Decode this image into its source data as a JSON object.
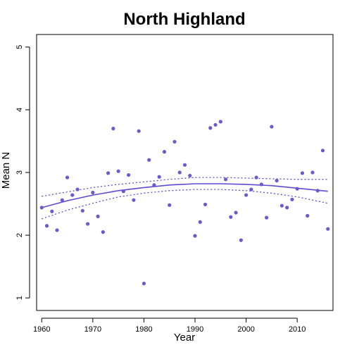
{
  "chart_data": {
    "type": "scatter",
    "title": "North Highland",
    "xlabel": "Year",
    "ylabel": "Mean N",
    "xlim": [
      1959,
      2017
    ],
    "ylim": [
      0.8,
      5.2
    ],
    "x_ticks": [
      1960,
      1970,
      1980,
      1990,
      2000,
      2010
    ],
    "y_ticks": [
      1,
      2,
      3,
      4,
      5
    ],
    "grid": false,
    "legend": "none",
    "colors": {
      "points": "#6a5acd",
      "fit": "#5b4bd6"
    },
    "points": [
      {
        "x": 1960,
        "y": 2.44
      },
      {
        "x": 1961,
        "y": 2.15
      },
      {
        "x": 1962,
        "y": 2.38
      },
      {
        "x": 1963,
        "y": 2.08
      },
      {
        "x": 1964,
        "y": 2.56
      },
      {
        "x": 1965,
        "y": 2.92
      },
      {
        "x": 1966,
        "y": 2.64
      },
      {
        "x": 1967,
        "y": 2.73
      },
      {
        "x": 1968,
        "y": 2.39
      },
      {
        "x": 1969,
        "y": 2.18
      },
      {
        "x": 1970,
        "y": 2.68
      },
      {
        "x": 1971,
        "y": 2.3
      },
      {
        "x": 1972,
        "y": 2.05
      },
      {
        "x": 1973,
        "y": 2.99
      },
      {
        "x": 1974,
        "y": 3.7
      },
      {
        "x": 1975,
        "y": 3.02
      },
      {
        "x": 1976,
        "y": 2.7
      },
      {
        "x": 1977,
        "y": 2.96
      },
      {
        "x": 1978,
        "y": 2.56
      },
      {
        "x": 1979,
        "y": 3.66
      },
      {
        "x": 1980,
        "y": 1.23
      },
      {
        "x": 1981,
        "y": 3.2
      },
      {
        "x": 1982,
        "y": 2.8
      },
      {
        "x": 1983,
        "y": 2.93
      },
      {
        "x": 1984,
        "y": 3.33
      },
      {
        "x": 1985,
        "y": 2.48
      },
      {
        "x": 1986,
        "y": 3.49
      },
      {
        "x": 1987,
        "y": 3.0
      },
      {
        "x": 1988,
        "y": 3.12
      },
      {
        "x": 1989,
        "y": 2.95
      },
      {
        "x": 1990,
        "y": 1.99
      },
      {
        "x": 1991,
        "y": 2.21
      },
      {
        "x": 1992,
        "y": 2.49
      },
      {
        "x": 1993,
        "y": 3.71
      },
      {
        "x": 1994,
        "y": 3.76
      },
      {
        "x": 1995,
        "y": 3.81
      },
      {
        "x": 1996,
        "y": 2.89
      },
      {
        "x": 1997,
        "y": 2.29
      },
      {
        "x": 1998,
        "y": 2.36
      },
      {
        "x": 1999,
        "y": 1.92
      },
      {
        "x": 2000,
        "y": 2.64
      },
      {
        "x": 2001,
        "y": 2.73
      },
      {
        "x": 2002,
        "y": 2.92
      },
      {
        "x": 2003,
        "y": 2.81
      },
      {
        "x": 2004,
        "y": 2.28
      },
      {
        "x": 2005,
        "y": 3.73
      },
      {
        "x": 2006,
        "y": 2.87
      },
      {
        "x": 2007,
        "y": 2.47
      },
      {
        "x": 2008,
        "y": 2.44
      },
      {
        "x": 2009,
        "y": 2.57
      },
      {
        "x": 2010,
        "y": 2.74
      },
      {
        "x": 2011,
        "y": 2.99
      },
      {
        "x": 2012,
        "y": 2.31
      },
      {
        "x": 2013,
        "y": 3.0
      },
      {
        "x": 2014,
        "y": 2.71
      },
      {
        "x": 2015,
        "y": 3.35
      },
      {
        "x": 2016,
        "y": 2.1
      }
    ],
    "fit": {
      "x": [
        1960,
        1965,
        1970,
        1975,
        1980,
        1985,
        1990,
        1995,
        2000,
        2005,
        2010,
        2016
      ],
      "y": [
        2.44,
        2.55,
        2.64,
        2.71,
        2.76,
        2.8,
        2.82,
        2.82,
        2.81,
        2.79,
        2.75,
        2.7
      ],
      "lower": [
        2.26,
        2.4,
        2.51,
        2.61,
        2.67,
        2.71,
        2.73,
        2.73,
        2.71,
        2.67,
        2.61,
        2.51
      ],
      "upper": [
        2.62,
        2.69,
        2.76,
        2.81,
        2.85,
        2.89,
        2.92,
        2.92,
        2.91,
        2.9,
        2.89,
        2.89
      ]
    }
  }
}
